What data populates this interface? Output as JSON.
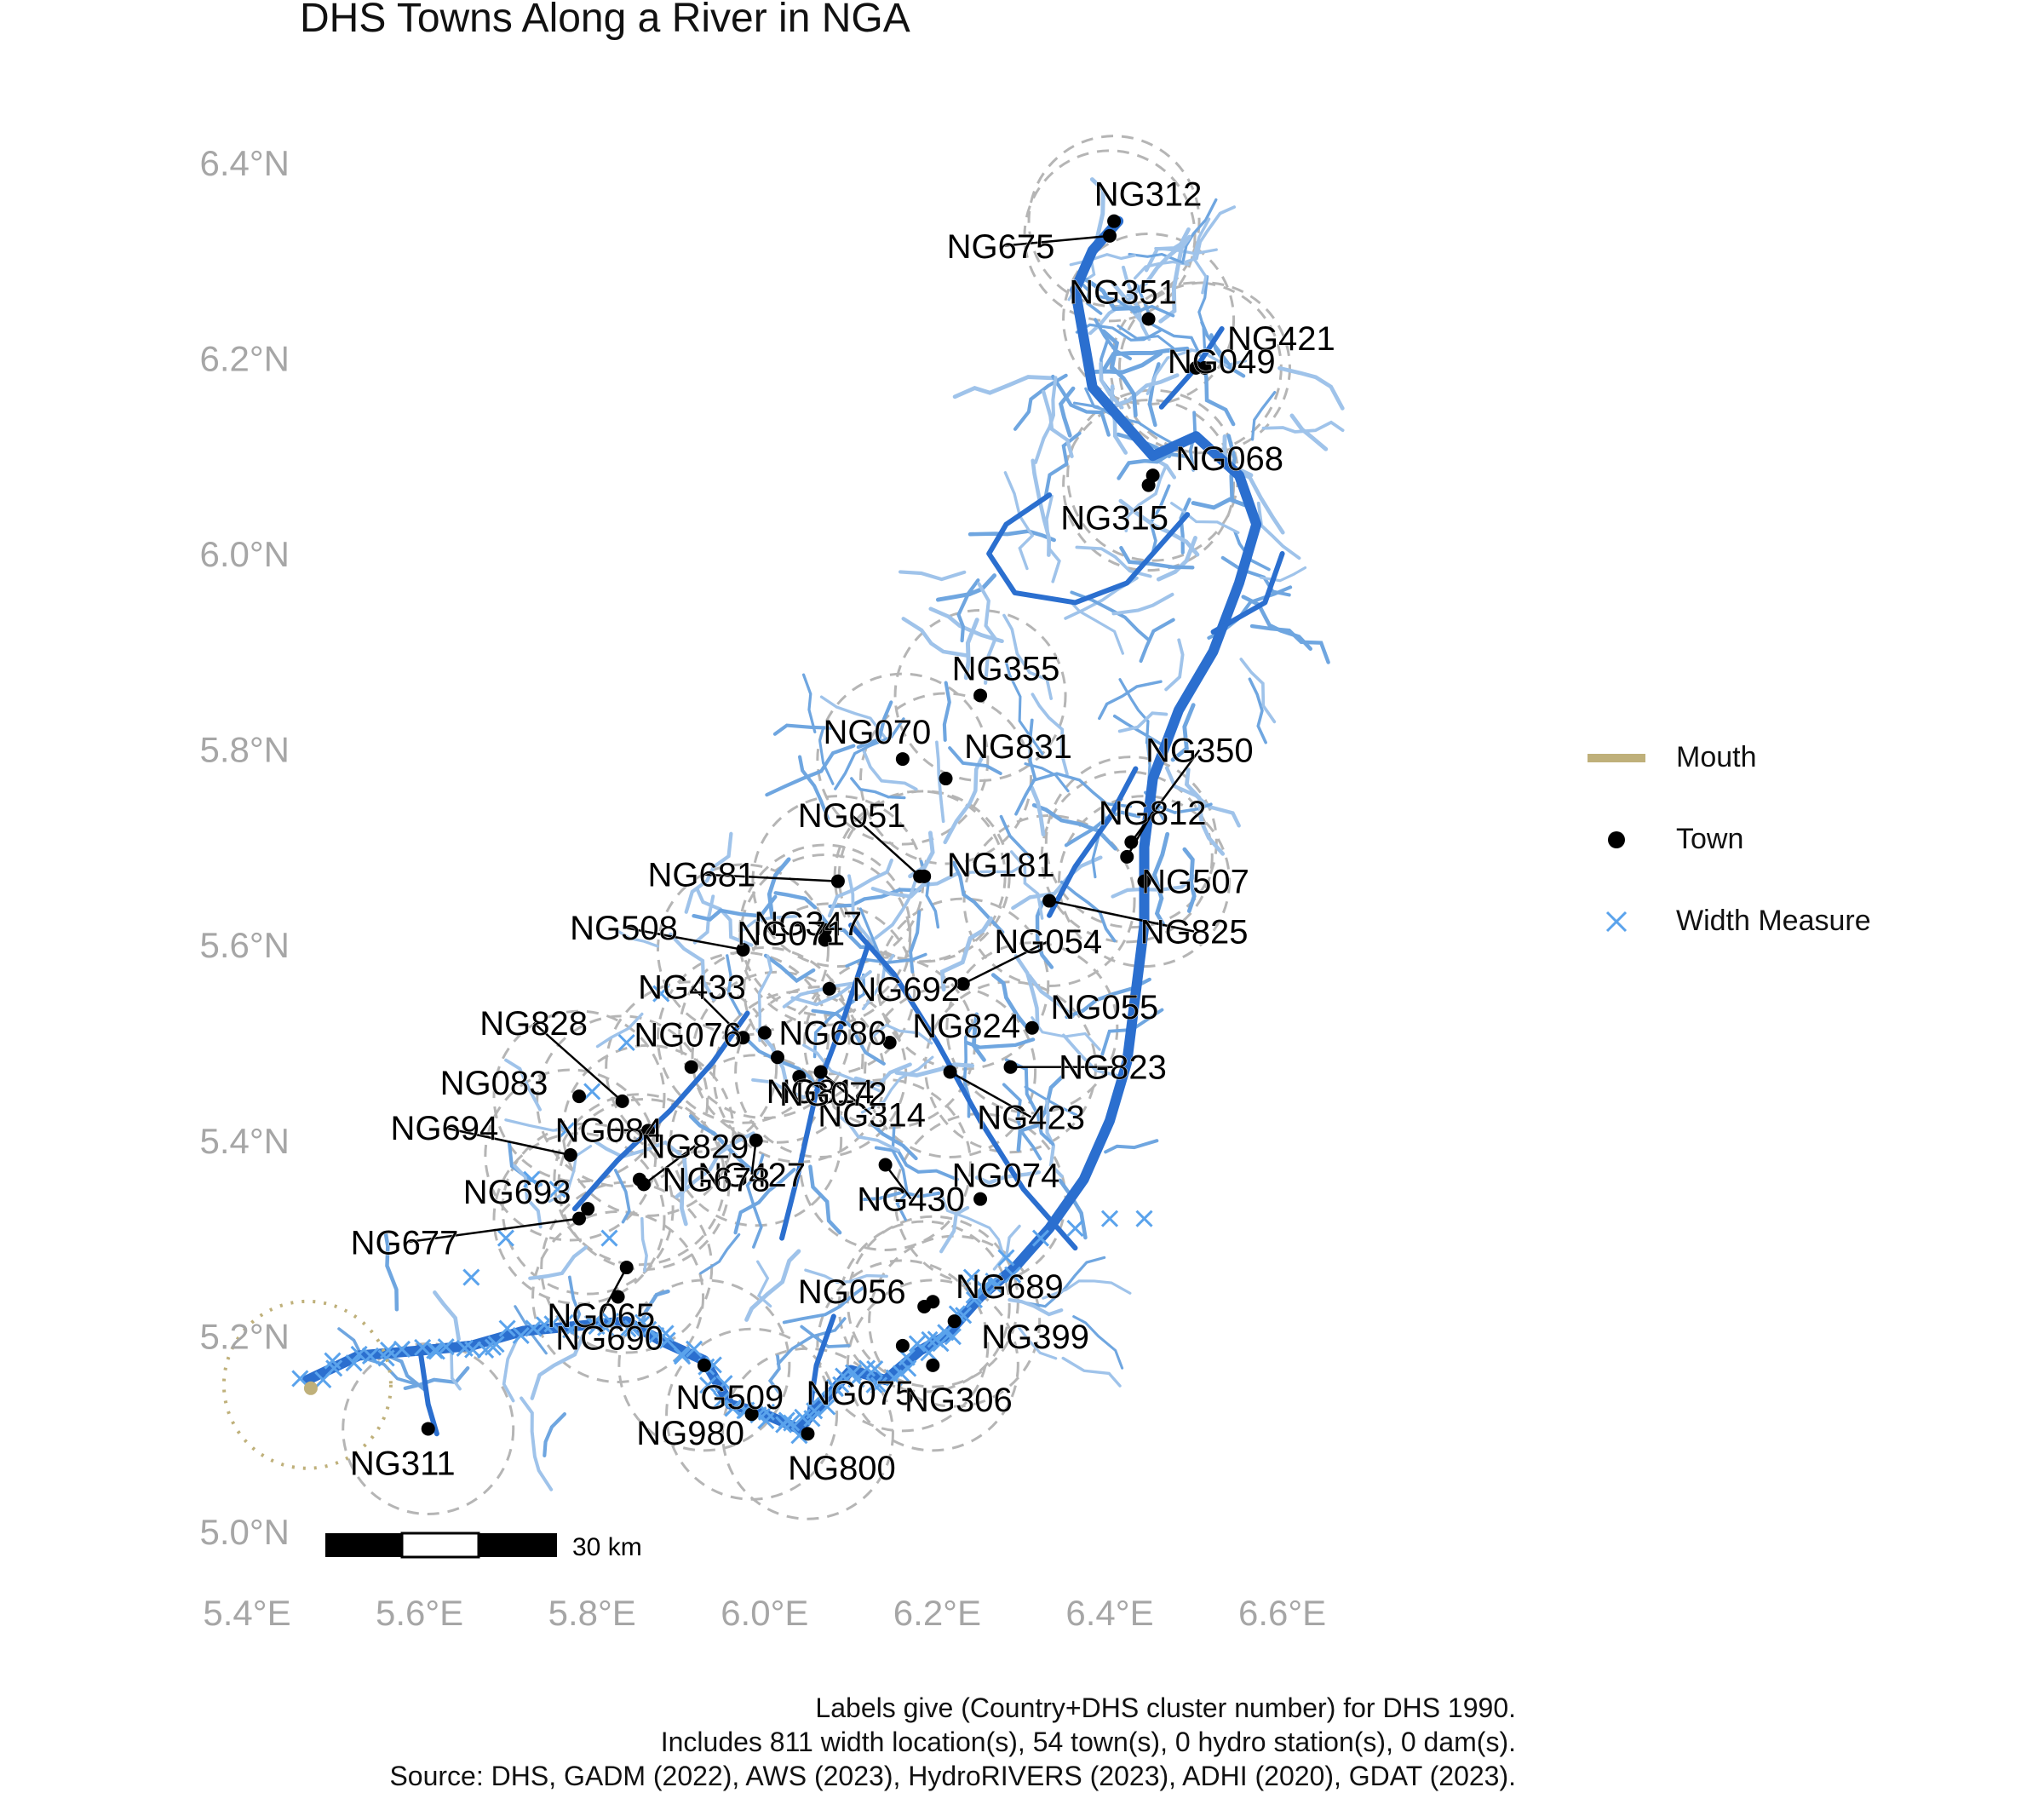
{
  "title": "DHS Towns Along a River in NGA",
  "axes": {
    "x_ticks": [
      "5.4°E",
      "5.6°E",
      "5.8°E",
      "6.0°E",
      "6.2°E",
      "6.4°E",
      "6.6°E"
    ],
    "x_values": [
      5.4,
      5.6,
      5.8,
      6.0,
      6.2,
      6.4,
      6.6
    ],
    "y_ticks": [
      "5.0°N",
      "5.2°N",
      "5.4°N",
      "5.6°N",
      "5.8°N",
      "6.0°N",
      "6.2°N",
      "6.4°N"
    ],
    "y_values": [
      5.0,
      5.2,
      5.4,
      5.6,
      5.8,
      6.0,
      6.2,
      6.4
    ],
    "xlim": [
      5.3,
      6.7
    ],
    "ylim": [
      5.0,
      6.45
    ]
  },
  "legend": [
    {
      "label": "Mouth",
      "symbol": "line",
      "color": "#bfb07a"
    },
    {
      "label": "Town",
      "symbol": "dot",
      "color": "#000000"
    },
    {
      "label": "Width Measure",
      "symbol": "cross",
      "color": "#5aa3ec"
    }
  ],
  "scale_bar": {
    "label": "30 km"
  },
  "colors": {
    "river_main": "#2b6fcf",
    "river_minor": "#6fa6e0",
    "width_measure": "#5aa3ec",
    "buffer": "#b5b5b5",
    "mouth": "#bfb07a"
  },
  "mouth": {
    "lon": 5.47,
    "lat": 5.15
  },
  "towns": [
    {
      "id": "NG312",
      "lon": 6.405,
      "lat": 6.34
    },
    {
      "id": "NG675",
      "lon": 6.4,
      "lat": 6.325
    },
    {
      "id": "NG351",
      "lon": 6.445,
      "lat": 6.24
    },
    {
      "id": "NG421",
      "lon": 6.51,
      "lat": 6.19
    },
    {
      "id": "NG049",
      "lon": 6.5,
      "lat": 6.19
    },
    {
      "id": "NG068",
      "lon": 6.45,
      "lat": 6.08
    },
    {
      "id": "NG315",
      "lon": 6.445,
      "lat": 6.07
    },
    {
      "id": "NG355",
      "lon": 6.25,
      "lat": 5.855
    },
    {
      "id": "NG070",
      "lon": 6.16,
      "lat": 5.79
    },
    {
      "id": "NG831",
      "lon": 6.21,
      "lat": 5.77
    },
    {
      "id": "NG350",
      "lon": 6.425,
      "lat": 5.705
    },
    {
      "id": "NG812",
      "lon": 6.42,
      "lat": 5.69
    },
    {
      "id": "NG051",
      "lon": 6.18,
      "lat": 5.67
    },
    {
      "id": "NG181",
      "lon": 6.185,
      "lat": 5.67
    },
    {
      "id": "NG507",
      "lon": 6.44,
      "lat": 5.665
    },
    {
      "id": "NG681",
      "lon": 6.085,
      "lat": 5.665
    },
    {
      "id": "NG347",
      "lon": 6.07,
      "lat": 5.615
    },
    {
      "id": "NG825",
      "lon": 6.33,
      "lat": 5.645
    },
    {
      "id": "NG508",
      "lon": 5.975,
      "lat": 5.595
    },
    {
      "id": "NG071",
      "lon": 6.07,
      "lat": 5.605
    },
    {
      "id": "NG692",
      "lon": 6.075,
      "lat": 5.555
    },
    {
      "id": "NG054",
      "lon": 6.23,
      "lat": 5.56
    },
    {
      "id": "NG433",
      "lon": 5.975,
      "lat": 5.505
    },
    {
      "id": "NG686",
      "lon": 6.0,
      "lat": 5.51
    },
    {
      "id": "NG824",
      "lon": 6.145,
      "lat": 5.5
    },
    {
      "id": "NG055",
      "lon": 6.31,
      "lat": 5.515
    },
    {
      "id": "NG828",
      "lon": 5.835,
      "lat": 5.44
    },
    {
      "id": "NG076",
      "lon": 5.915,
      "lat": 5.475
    },
    {
      "id": "NG823",
      "lon": 6.285,
      "lat": 5.475
    },
    {
      "id": "NG083",
      "lon": 5.785,
      "lat": 5.445
    },
    {
      "id": "NG814",
      "lon": 6.015,
      "lat": 5.485
    },
    {
      "id": "NG314",
      "lon": 6.065,
      "lat": 5.47
    },
    {
      "id": "NG423",
      "lon": 6.215,
      "lat": 5.47
    },
    {
      "id": "NG694",
      "lon": 5.775,
      "lat": 5.385
    },
    {
      "id": "NG084",
      "lon": 5.865,
      "lat": 5.41
    },
    {
      "id": "NG829",
      "lon": 5.86,
      "lat": 5.355
    },
    {
      "id": "NG072",
      "lon": 6.04,
      "lat": 5.465
    },
    {
      "id": "NG074",
      "lon": 6.25,
      "lat": 5.34
    },
    {
      "id": "NG693",
      "lon": 5.795,
      "lat": 5.33
    },
    {
      "id": "NG427",
      "lon": 5.99,
      "lat": 5.4
    },
    {
      "id": "NG430",
      "lon": 6.14,
      "lat": 5.375
    },
    {
      "id": "NG677",
      "lon": 5.785,
      "lat": 5.32
    },
    {
      "id": "NG065",
      "lon": 5.84,
      "lat": 5.27
    },
    {
      "id": "NG678",
      "lon": 5.855,
      "lat": 5.36
    },
    {
      "id": "NG056",
      "lon": 6.185,
      "lat": 5.23
    },
    {
      "id": "NG689",
      "lon": 6.195,
      "lat": 5.235
    },
    {
      "id": "NG399",
      "lon": 6.22,
      "lat": 5.215
    },
    {
      "id": "NG690",
      "lon": 5.83,
      "lat": 5.24
    },
    {
      "id": "NG075",
      "lon": 6.16,
      "lat": 5.19
    },
    {
      "id": "NG509",
      "lon": 5.93,
      "lat": 5.17
    },
    {
      "id": "NG306",
      "lon": 6.195,
      "lat": 5.17
    },
    {
      "id": "NG980",
      "lon": 5.985,
      "lat": 5.12
    },
    {
      "id": "NG800",
      "lon": 6.05,
      "lat": 5.1
    },
    {
      "id": "NG311",
      "lon": 5.61,
      "lat": 5.105
    }
  ],
  "caption": [
    "Labels give (Country+DHS cluster number) for DHS 1990.",
    "Includes 811 width location(s), 54 town(s), 0 hydro station(s), 0 dam(s).",
    "Source: DHS, GADM (2022), AWS (2023), HydroRIVERS (2023), ADHI (2020), GDAT (2023)."
  ]
}
